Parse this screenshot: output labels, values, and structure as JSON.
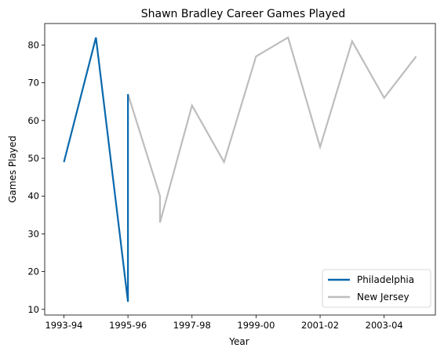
{
  "chart_data": {
    "type": "line",
    "title": "Shawn Bradley Career Games Played",
    "xlabel": "Year",
    "ylabel": "Games Played",
    "x_ticks": [
      {
        "label": "1993-94",
        "value": 0
      },
      {
        "label": "1995-96",
        "value": 2
      },
      {
        "label": "1997-98",
        "value": 4
      },
      {
        "label": "1999-00",
        "value": 6
      },
      {
        "label": "2001-02",
        "value": 8
      },
      {
        "label": "2003-04",
        "value": 10
      }
    ],
    "y_ticks": [
      10,
      20,
      30,
      40,
      50,
      60,
      70,
      80
    ],
    "xlim": [
      -0.6,
      11.6
    ],
    "ylim": [
      8.5,
      85.7
    ],
    "legend_position": "bottom-right",
    "series": [
      {
        "name": "Philadelphia",
        "color": "#0868ac",
        "points": [
          [
            0,
            49
          ],
          [
            1,
            82
          ],
          [
            2,
            12
          ],
          [
            2,
            67
          ]
        ]
      },
      {
        "name": "New Jersey",
        "color": "#bdbdbd",
        "points": [
          [
            2,
            67
          ],
          [
            3,
            40
          ],
          [
            3,
            33
          ],
          [
            4,
            64
          ],
          [
            5,
            49
          ],
          [
            6,
            77
          ],
          [
            7,
            82
          ],
          [
            8,
            53
          ],
          [
            9,
            81
          ],
          [
            10,
            66
          ],
          [
            11,
            77
          ]
        ]
      }
    ]
  }
}
